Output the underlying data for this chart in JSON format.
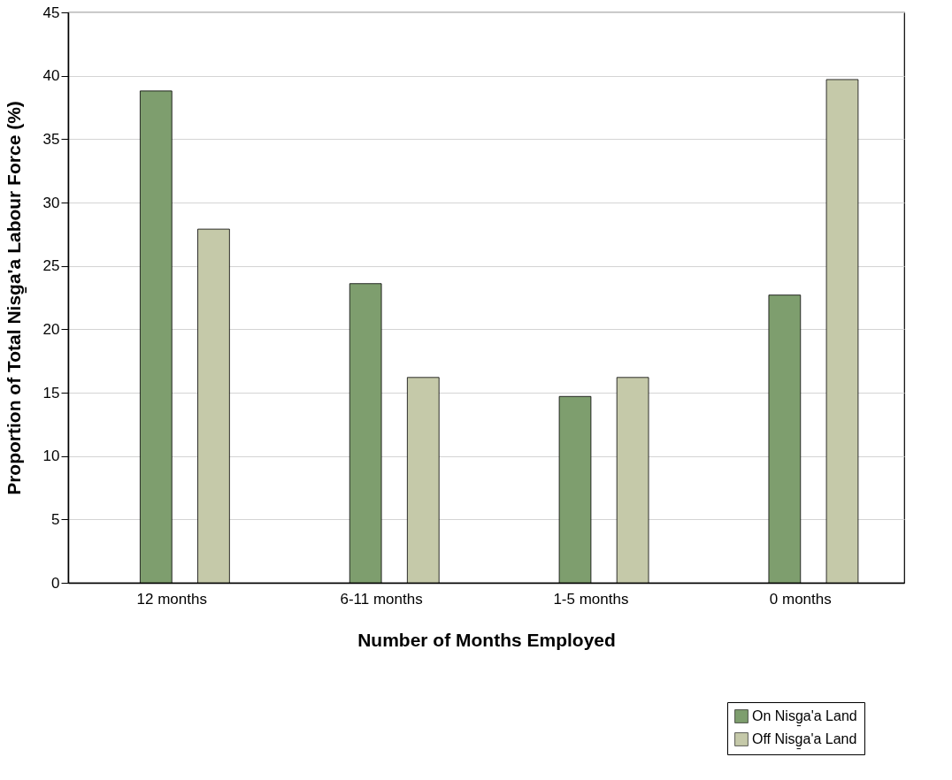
{
  "chart_data": {
    "type": "bar",
    "xlabel": "Number of Months Employed",
    "ylabel": "Proportion of Total Nisg̱a'a Labour Force (%)",
    "categories": [
      "12 months",
      "6-11 months",
      "1-5 months",
      "0 months"
    ],
    "series": [
      {
        "name": "On Nisg̱a'a Land",
        "color": "#7e9e6e",
        "values": [
          38.8,
          23.6,
          14.7,
          22.7
        ]
      },
      {
        "name": "Off Nisg̱a'a Land",
        "color": "#c5c9a9",
        "values": [
          27.9,
          16.2,
          16.2,
          39.7
        ]
      }
    ],
    "ylim": [
      0,
      45
    ],
    "yticks": [
      0,
      5,
      10,
      15,
      20,
      25,
      30,
      35,
      40,
      45
    ],
    "grid": "y",
    "legend": "bottom right"
  }
}
